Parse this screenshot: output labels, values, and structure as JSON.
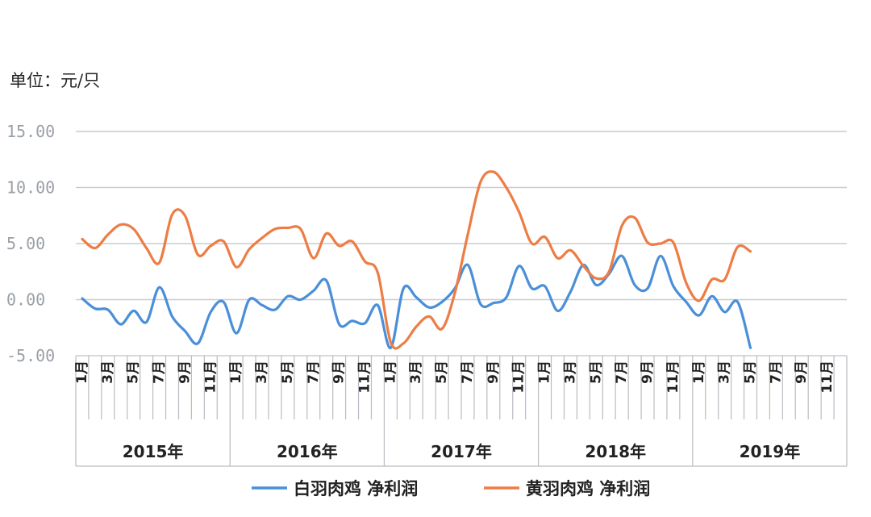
{
  "unit_label": "单位：元/只",
  "chart_data": {
    "type": "line",
    "title": "",
    "xlabel": "",
    "ylabel": "",
    "ylim": [
      -5,
      15
    ],
    "yticks": [
      "15.00",
      "10.00",
      "5.00",
      "0.00",
      "-5.00"
    ],
    "month_tick_labels": [
      "1月",
      "3月",
      "5月",
      "7月",
      "9月",
      "11月"
    ],
    "years": [
      "2015年",
      "2016年",
      "2017年",
      "2018年",
      "2019年"
    ],
    "grid": true,
    "legend": "bottom",
    "series": [
      {
        "name": "白羽肉鸡 净利润",
        "color": "#4a8fd8",
        "values": [
          0.1,
          -0.8,
          -0.9,
          -2.2,
          -1.0,
          -2.0,
          1.1,
          -1.5,
          -2.8,
          -3.9,
          -1.1,
          -0.2,
          -3.0,
          0.0,
          -0.5,
          -0.9,
          0.3,
          0.0,
          0.8,
          1.7,
          -2.2,
          -1.9,
          -2.1,
          -0.5,
          -4.3,
          1.0,
          0.2,
          -0.7,
          -0.2,
          1.0,
          3.1,
          -0.4,
          -0.3,
          0.2,
          3.0,
          1.0,
          1.2,
          -1.0,
          0.7,
          3.1,
          1.3,
          2.3,
          3.9,
          1.3,
          1.0,
          3.9,
          1.2,
          -0.2,
          -1.4,
          0.3,
          -1.1,
          -0.2,
          -4.3
        ]
      },
      {
        "name": "黄羽肉鸡 净利润",
        "color": "#ed7d45",
        "values": [
          5.4,
          4.6,
          5.8,
          6.7,
          6.3,
          4.6,
          3.3,
          7.6,
          7.5,
          4.0,
          4.8,
          5.2,
          2.9,
          4.5,
          5.5,
          6.3,
          6.4,
          6.3,
          3.7,
          5.9,
          4.8,
          5.2,
          3.4,
          2.4,
          -3.8,
          -3.9,
          -2.4,
          -1.5,
          -2.6,
          0.6,
          5.8,
          10.5,
          11.4,
          10.0,
          7.8,
          5.0,
          5.6,
          3.7,
          4.4,
          3.0,
          1.9,
          2.5,
          6.6,
          7.3,
          5.1,
          5.0,
          5.1,
          1.5,
          -0.1,
          1.8,
          1.8,
          4.7,
          4.3
        ]
      }
    ]
  }
}
